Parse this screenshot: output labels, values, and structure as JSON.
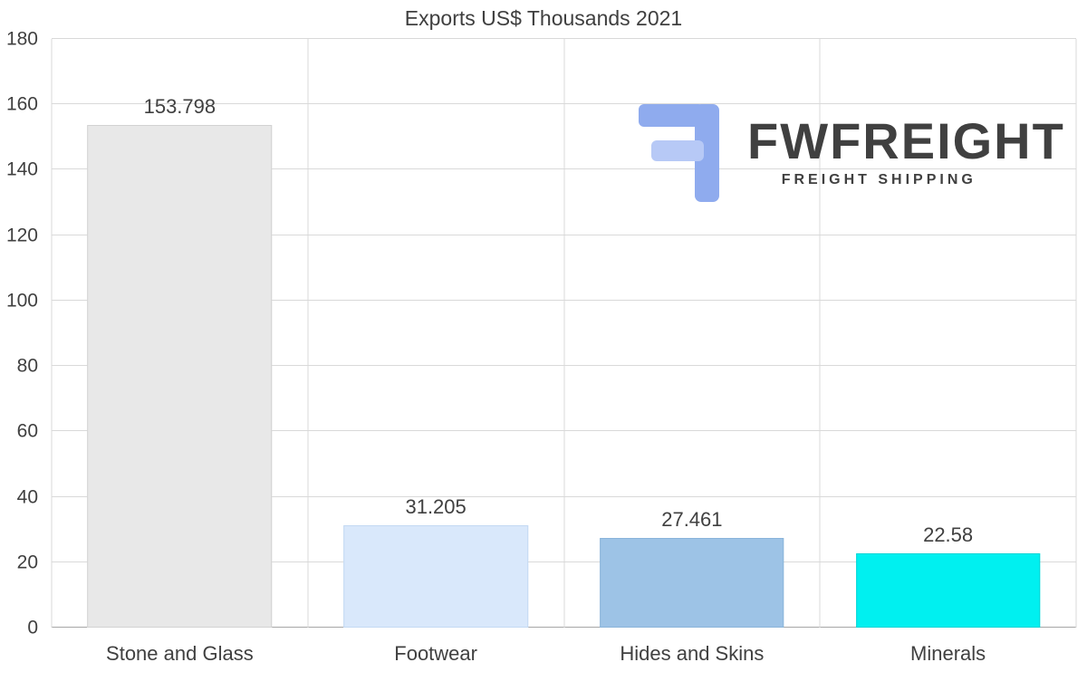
{
  "chart_data": {
    "type": "bar",
    "title": "Exports US$ Thousands 2021",
    "categories": [
      "Stone and Glass",
      "Footwear",
      "Hides and Skins",
      "Minerals"
    ],
    "values": [
      153.798,
      31.205,
      27.461,
      22.58
    ],
    "value_labels": [
      "153.798",
      "31.205",
      "27.461",
      "22.58"
    ],
    "bar_colors": [
      "#e8e8e8",
      "#d9e8fb",
      "#9dc3e6",
      "#00f0f0"
    ],
    "bar_border_colors": [
      "#d2d2d2",
      "#c3d9f3",
      "#8ab4da",
      "#00d5d5"
    ],
    "xlabel": "",
    "ylabel": "",
    "ylim": [
      0,
      180
    ],
    "yticks": [
      0,
      20,
      40,
      60,
      80,
      100,
      120,
      140,
      160,
      180
    ],
    "grid": "horizontal lines at each y tick, vertical lines at category boundaries",
    "legend_position": "none"
  },
  "watermark": {
    "brand": "FWFREIGHT",
    "tagline": "FREIGHT SHIPPING",
    "color": "#a6baf1",
    "icon": "fwfreight-logo-icon"
  }
}
